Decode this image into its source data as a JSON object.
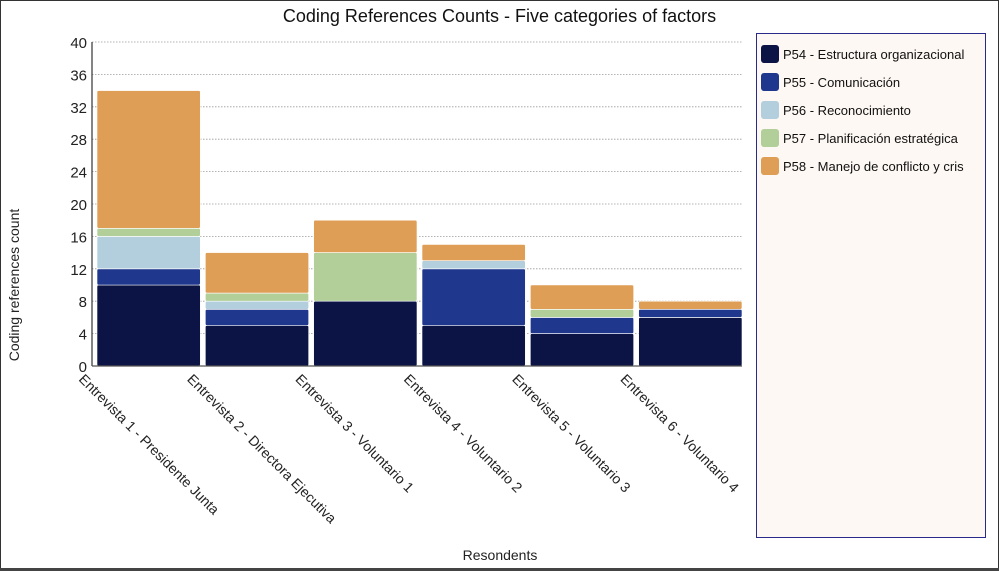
{
  "chart_data": {
    "type": "bar",
    "stacked": true,
    "title": "Coding References Counts - Five categories of factors",
    "xlabel": "Resondents",
    "ylabel": "Coding references count",
    "ylim": [
      0,
      40
    ],
    "yticks": [
      0,
      4,
      8,
      12,
      16,
      20,
      24,
      28,
      32,
      36,
      40
    ],
    "grid": true,
    "legend_position": "right",
    "categories": [
      "Entrevista 1 - Presidente Junta",
      "Entrevista 2 - Directora Ejecutiva",
      "Entrevista 3 - Voluntario 1",
      "Entrevista 4 - Voluntario 2",
      "Entrevista 5 - Voluntario 3",
      "Entrevista 6 - Voluntario 4"
    ],
    "series": [
      {
        "name": "P54 - Estructura organizacional",
        "color": "#0c1445",
        "values": [
          10,
          5,
          8,
          5,
          4,
          6
        ]
      },
      {
        "name": "P55 - Comunicación",
        "color": "#1f378c",
        "values": [
          2,
          2,
          0,
          7,
          2,
          1
        ]
      },
      {
        "name": "P56 - Reconocimiento",
        "color": "#b3cfdd",
        "values": [
          4,
          1,
          0,
          1,
          0,
          0
        ]
      },
      {
        "name": "P57 - Planificación estratégica",
        "color": "#b3cf99",
        "values": [
          1,
          1,
          6,
          0,
          1,
          0
        ]
      },
      {
        "name": "P58 - Manejo de conflicto y cris",
        "color": "#df9e56",
        "values": [
          17,
          5,
          4,
          2,
          3,
          1
        ]
      }
    ]
  }
}
